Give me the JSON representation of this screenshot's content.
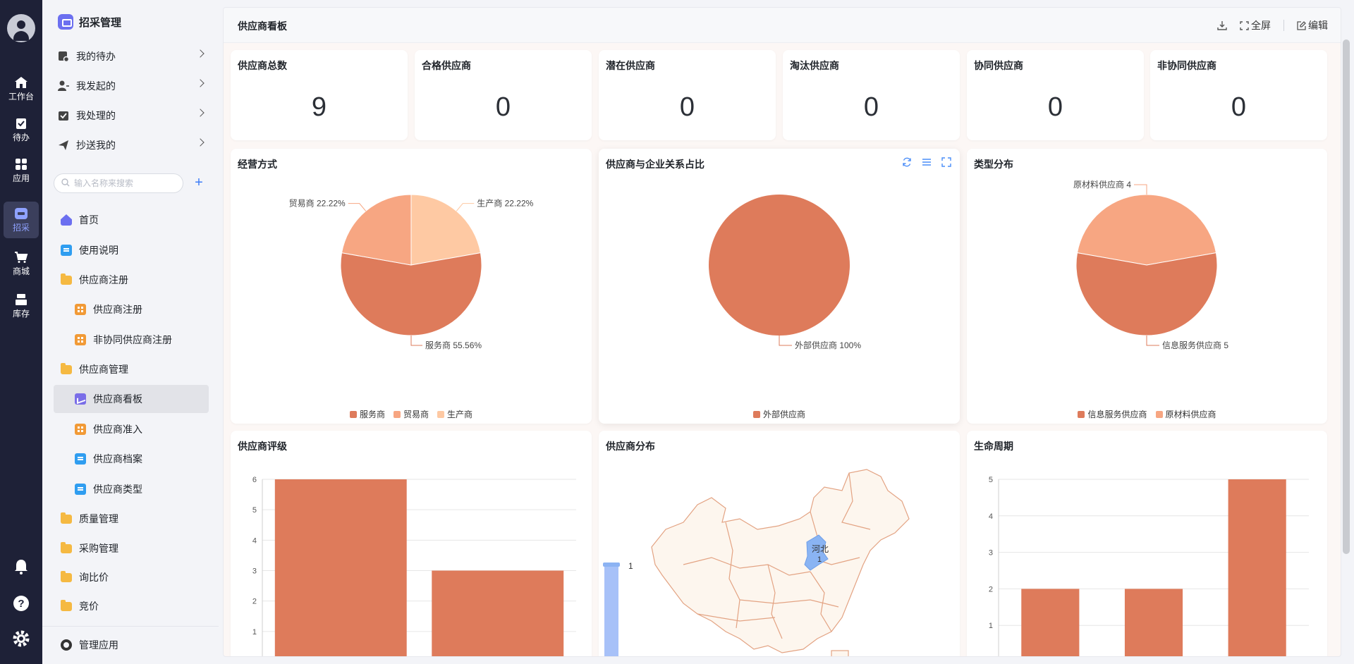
{
  "rail": {
    "items": [
      {
        "label": "工作台",
        "icon": "home-icon"
      },
      {
        "label": "待办",
        "icon": "todo-icon"
      },
      {
        "label": "应用",
        "icon": "apps-icon"
      },
      {
        "label": "招采",
        "icon": "procurement-icon"
      },
      {
        "label": "商城",
        "icon": "cart-icon"
      },
      {
        "label": "库存",
        "icon": "inventory-icon"
      }
    ],
    "active": "招采"
  },
  "sidebar": {
    "app_title": "招采管理",
    "tasks": [
      {
        "label": "我的待办",
        "icon": "todo-list-icon"
      },
      {
        "label": "我发起的",
        "icon": "user-initiated-icon"
      },
      {
        "label": "我处理的",
        "icon": "handled-icon"
      },
      {
        "label": "抄送我的",
        "icon": "send-icon"
      }
    ],
    "search_placeholder": "输入名称来搜索",
    "add_label": "+",
    "nav": [
      {
        "label": "首页",
        "icon": "home"
      },
      {
        "label": "使用说明",
        "icon": "doc"
      },
      {
        "label": "供应商注册",
        "icon": "folder"
      },
      {
        "label": "供应商注册",
        "icon": "grid"
      },
      {
        "label": "非协同供应商注册",
        "icon": "grid"
      },
      {
        "label": "供应商管理",
        "icon": "folder"
      },
      {
        "label": "供应商看板",
        "icon": "chart"
      },
      {
        "label": "供应商准入",
        "icon": "grid"
      },
      {
        "label": "供应商档案",
        "icon": "doc"
      },
      {
        "label": "供应商类型",
        "icon": "doc"
      },
      {
        "label": "质量管理",
        "icon": "folder"
      },
      {
        "label": "采购管理",
        "icon": "folder"
      },
      {
        "label": "询比价",
        "icon": "folder"
      },
      {
        "label": "竞价",
        "icon": "folder"
      }
    ],
    "manage_label": "管理应用"
  },
  "main": {
    "title": "供应商看板",
    "tools": {
      "download": "",
      "fullscreen": "全屏",
      "edit": "编辑"
    },
    "stats": [
      {
        "label": "供应商总数",
        "value": "9"
      },
      {
        "label": "合格供应商",
        "value": "0"
      },
      {
        "label": "潜在供应商",
        "value": "0"
      },
      {
        "label": "淘汰供应商",
        "value": "0"
      },
      {
        "label": "协同供应商",
        "value": "0"
      },
      {
        "label": "非协同供应商",
        "value": "0"
      }
    ],
    "colors": {
      "c1": "#de7b5b",
      "c2": "#f7a682",
      "c3": "#fec9a3",
      "map_fill": "#fdf6ee",
      "map_line": "#e3a383",
      "map_hl": "#8ab4f3"
    }
  },
  "chart_data": [
    {
      "type": "pie",
      "title": "经营方式",
      "slices": [
        {
          "name": "服务商",
          "value": 55.56,
          "label": "服务商 55.56%"
        },
        {
          "name": "贸易商",
          "value": 22.22,
          "label": "贸易商 22.22%"
        },
        {
          "name": "生产商",
          "value": 22.22,
          "label": "生产商 22.22%"
        }
      ],
      "legend": [
        "服务商",
        "贸易商",
        "生产商"
      ]
    },
    {
      "type": "pie",
      "title": "供应商与企业关系占比",
      "slices": [
        {
          "name": "外部供应商",
          "value": 100,
          "label": "外部供应商 100%"
        }
      ],
      "legend": [
        "外部供应商"
      ]
    },
    {
      "type": "pie",
      "title": "类型分布",
      "slices": [
        {
          "name": "信息服务供应商",
          "value": 5,
          "label": "信息服务供应商 5"
        },
        {
          "name": "原材料供应商",
          "value": 4,
          "label": "原材料供应商 4"
        }
      ],
      "legend": [
        "信息服务供应商",
        "原材料供应商"
      ]
    },
    {
      "type": "bar",
      "title": "供应商评级",
      "values": [
        6,
        3
      ],
      "ylim": [
        0,
        6
      ],
      "yticks": [
        "0",
        "1",
        "2",
        "3",
        "4",
        "5",
        "6"
      ]
    },
    {
      "type": "map",
      "title": "供应商分布",
      "regions": [
        {
          "name": "河北",
          "value": 1
        }
      ],
      "visual_map_max": "1"
    },
    {
      "type": "bar",
      "title": "生命周期",
      "values": [
        2,
        2,
        5
      ],
      "ylim": [
        0,
        5
      ],
      "yticks": [
        "0",
        "1",
        "2",
        "3",
        "4",
        "5"
      ]
    }
  ]
}
